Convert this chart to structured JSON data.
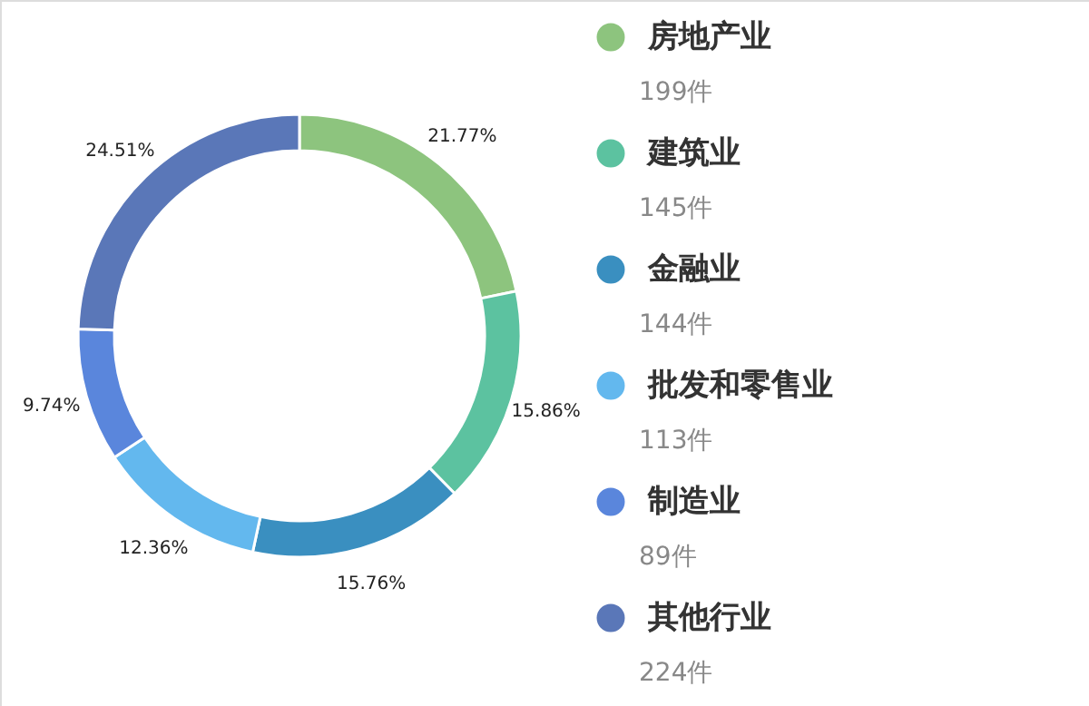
{
  "chart_data": {
    "type": "donut",
    "categories": [
      "房地产业",
      "建筑业",
      "金融业",
      "批发和零售业",
      "制造业",
      "其他行业"
    ],
    "values": [
      21.77,
      15.86,
      15.76,
      12.36,
      9.74,
      24.51
    ],
    "colors": [
      "#8dc47e",
      "#5cc2a0",
      "#3a8fc0",
      "#63b8ee",
      "#5a86dc",
      "#5a77b8"
    ],
    "value_labels": [
      "21.77%",
      "15.86%",
      "15.76%",
      "12.36%",
      "9.74%",
      "24.51%"
    ],
    "annotations": [
      "199件",
      "145件",
      "144件",
      "113件",
      "89件",
      "224件"
    ],
    "legend": "right"
  }
}
